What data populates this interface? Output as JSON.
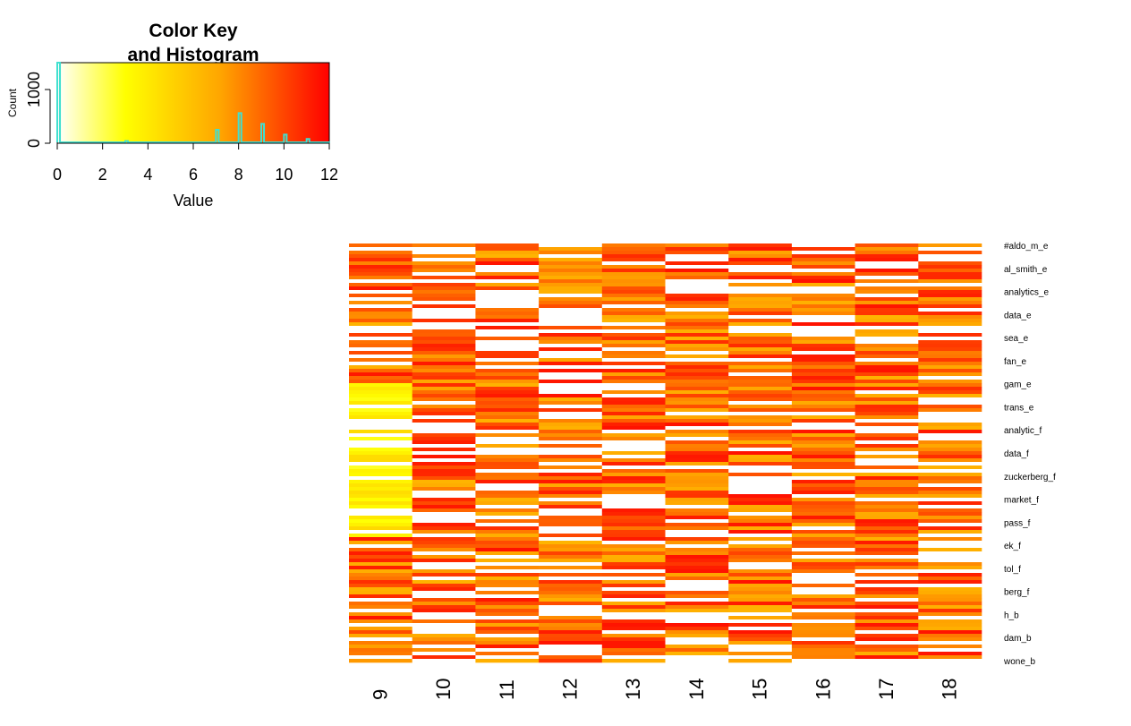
{
  "chart_data": [
    {
      "type": "histogram",
      "title_lines": [
        "Color Key",
        "and Histogram"
      ],
      "xlabel": "Value",
      "ylabel": "Count",
      "xlim": [
        0,
        12
      ],
      "x_ticks": [
        "0",
        "2",
        "4",
        "6",
        "8",
        "10",
        "12"
      ],
      "y_ticks": [
        "0",
        "1000"
      ],
      "ylim": [
        0,
        1500
      ],
      "color_scale": [
        "#ffffff",
        "#ffff00",
        "#ffa500",
        "#ff0000"
      ],
      "histogram_line_color": "#40e0d0",
      "bins": [
        {
          "x": 0,
          "count": 1500
        },
        {
          "x": 3,
          "count": 40
        },
        {
          "x": 7,
          "count": 250
        },
        {
          "x": 8,
          "count": 560
        },
        {
          "x": 9,
          "count": 360
        },
        {
          "x": 10,
          "count": 160
        },
        {
          "x": 11,
          "count": 80
        },
        {
          "x": 12,
          "count": 10
        }
      ]
    },
    {
      "type": "heatmap",
      "columns": [
        "9",
        "10",
        "11",
        "12",
        "13",
        "14",
        "15",
        "16",
        "17",
        "18"
      ],
      "row_label_samples": [
        "#aldo_m_e",
        "al_smith_e",
        "analytics_e",
        "data_e",
        "sea_e",
        "fan_e",
        "gam_e",
        "trans_e",
        "analytic_f",
        "data_f",
        "zuckerberg_f",
        "market_f",
        "pass_f",
        "ek_f",
        "tol_f",
        "berg_f",
        "h_b",
        "dam_b",
        "wone_b"
      ],
      "value_range": [
        0,
        12
      ],
      "color_scale": [
        "#ffffff",
        "#ffff00",
        "#ffa500",
        "#ff0000"
      ]
    }
  ]
}
